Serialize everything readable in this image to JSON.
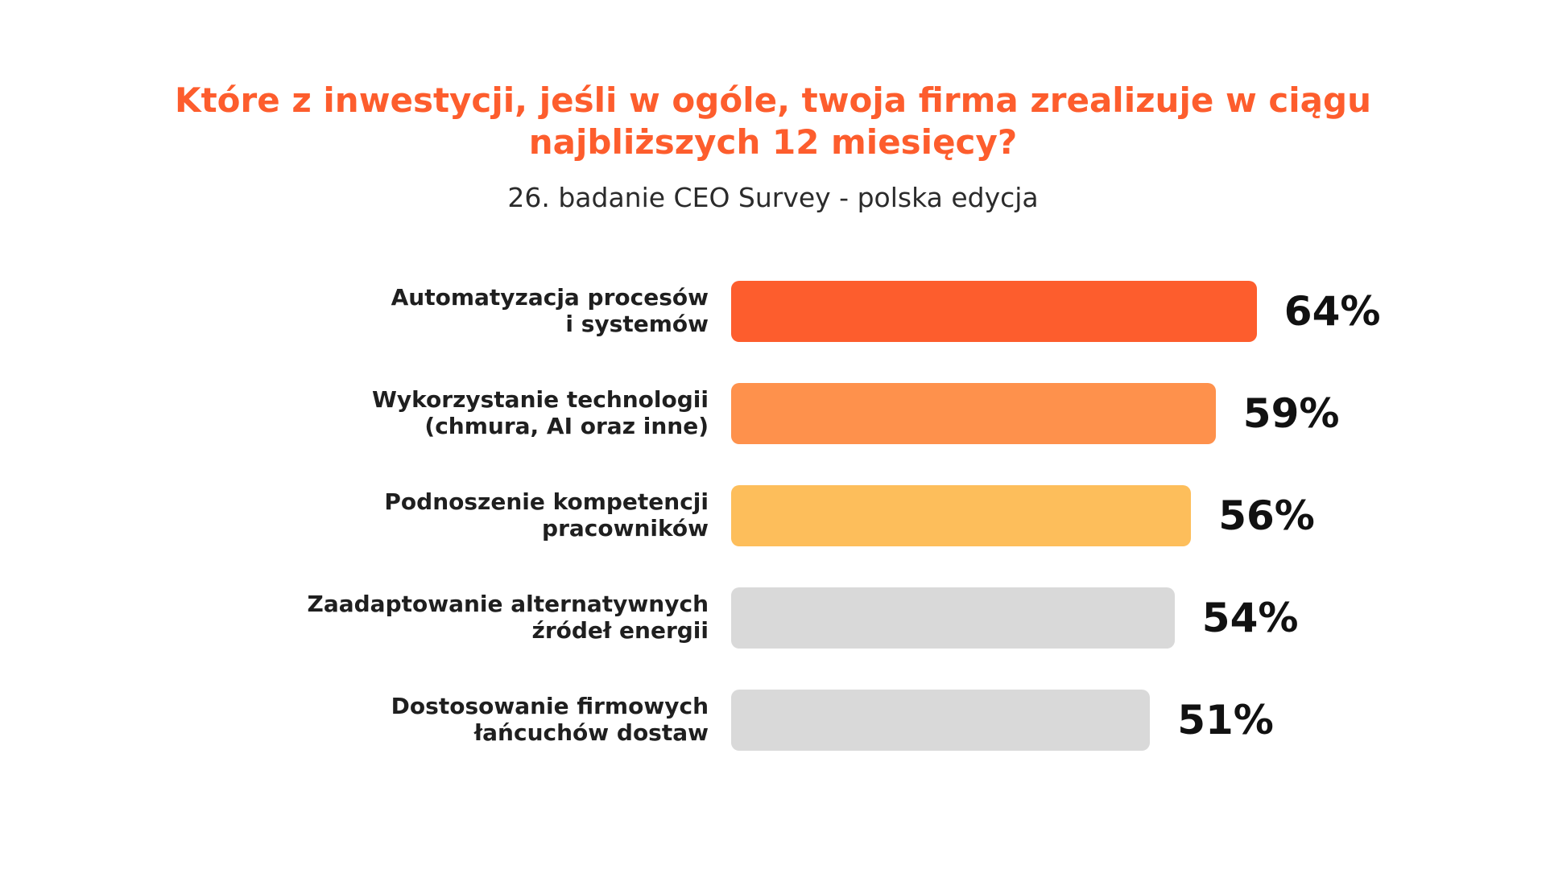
{
  "chart_data": {
    "type": "bar",
    "orientation": "horizontal",
    "title": "Które z inwestycji, jeśli w ogóle, twoja firma zrealizuje w ciągu najbliższych 12 miesięcy?",
    "title_lines": [
      "Które z inwestycji, jeśli w ogóle, twoja firma zrealizuje w ciągu",
      "najbliższych 12 miesięcy?"
    ],
    "subtitle": "26. badanie CEO Survey - polska edycja",
    "categories": [
      [
        "Automatyzacja procesów",
        "i systemów"
      ],
      [
        "Wykorzystanie technologii",
        "(chmura, AI oraz inne)"
      ],
      [
        "Podnoszenie kompetencji",
        "pracowników"
      ],
      [
        "Zaadaptowanie alternatywnych",
        "źródeł energii"
      ],
      [
        "Dostosowanie firmowych",
        "łańcuchów dostaw"
      ]
    ],
    "values": [
      64,
      59,
      56,
      54,
      51
    ],
    "value_labels": [
      "64%",
      "59%",
      "56%",
      "54%",
      "51%"
    ],
    "colors": [
      "#fd5d2d",
      "#fe914c",
      "#fdbe5b",
      "#d9d9d9",
      "#d9d9d9"
    ],
    "unit": "%",
    "xlabel": "",
    "ylabel": "",
    "grid": false,
    "legend": "none"
  },
  "colors": {
    "title": "#fd5d2d",
    "subtitle": "#2b2b2b"
  }
}
